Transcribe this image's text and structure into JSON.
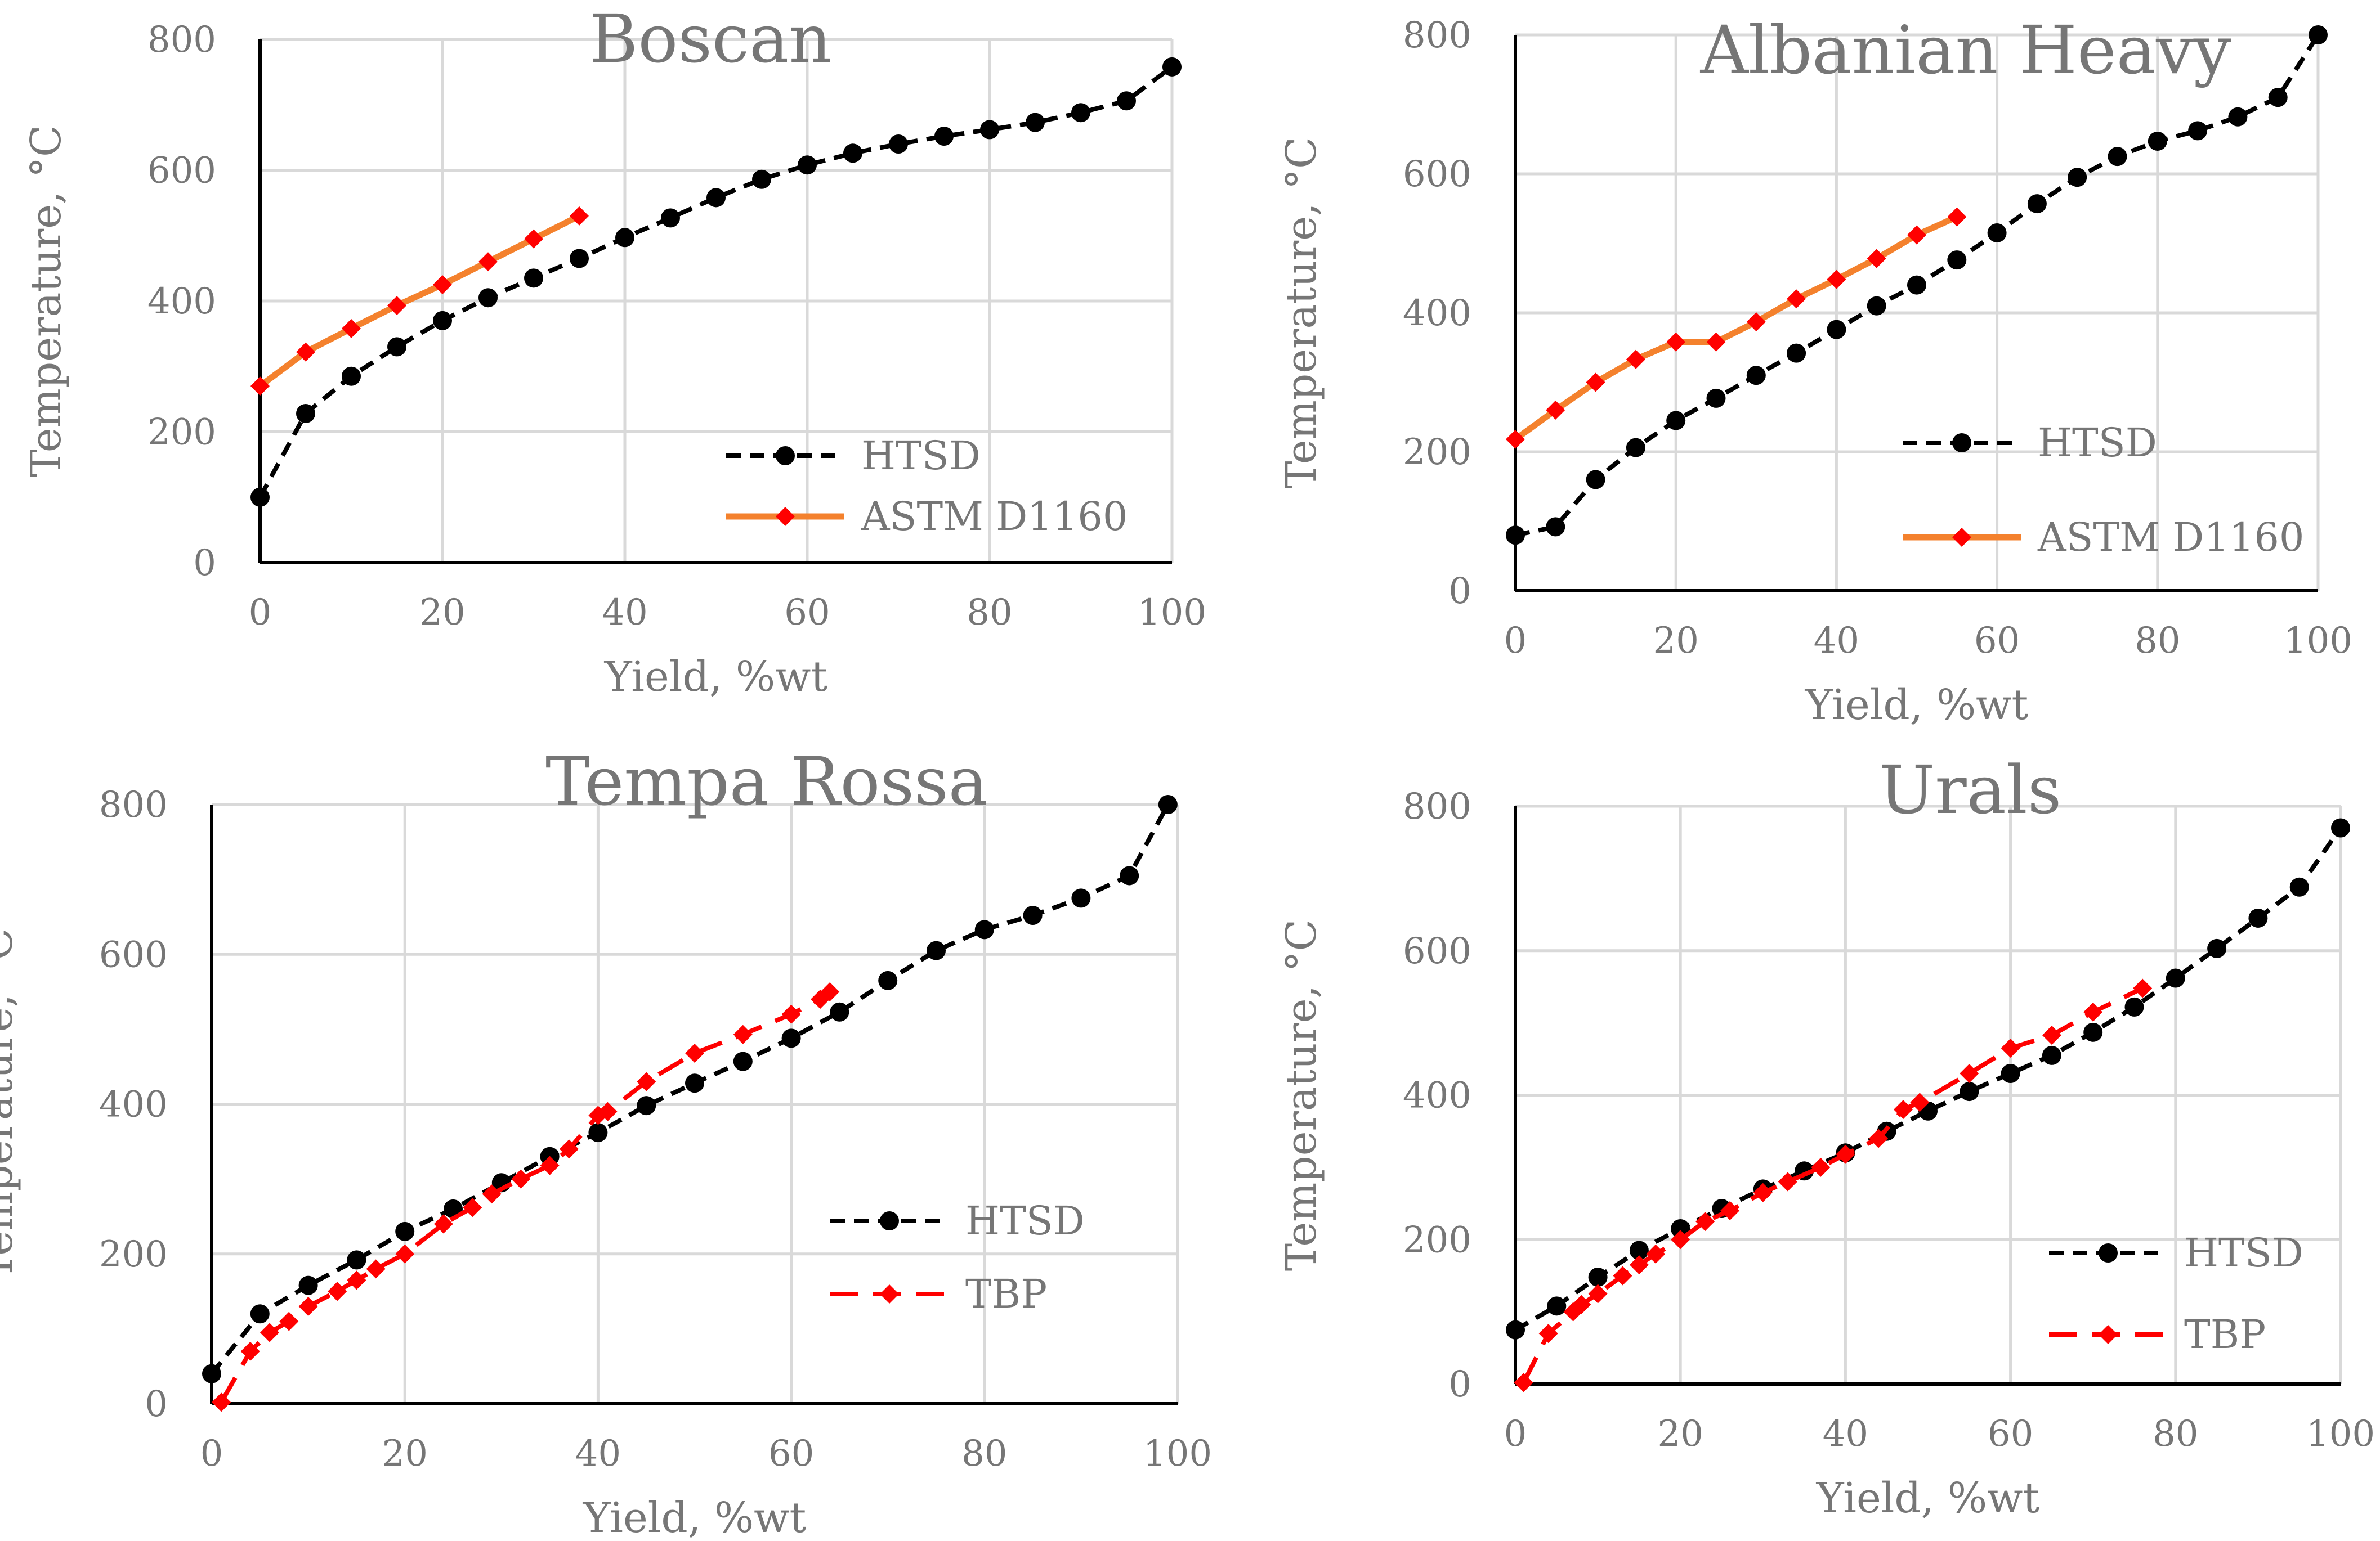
{
  "colors": {
    "htsd": "#000000",
    "astm": "#f4812d",
    "astm_marker": "#ff0000",
    "tbp": "#ff0000",
    "grid": "#d9d9d9",
    "text": "#767676"
  },
  "chart_data": [
    {
      "type": "line",
      "title": "Boscan",
      "xlabel": "Yield, %wt",
      "ylabel": "Temperature, °C",
      "xlim": [
        0,
        100
      ],
      "ylim": [
        0,
        800
      ],
      "xticks": [
        "0",
        "20",
        "40",
        "60",
        "80",
        "100"
      ],
      "yticks": [
        "0",
        "200",
        "400",
        "600",
        "800"
      ],
      "grid": true,
      "legend_position": "bottom-right",
      "series": [
        {
          "name": "HTSD",
          "style": "dashed-circle",
          "x": [
            0,
            5,
            10,
            15,
            20,
            25,
            30,
            35,
            40,
            45,
            50,
            55,
            60,
            65,
            70,
            75,
            80,
            85,
            90,
            95,
            100
          ],
          "y": [
            100,
            228,
            285,
            330,
            370,
            405,
            435,
            465,
            497,
            527,
            558,
            586,
            608,
            626,
            640,
            652,
            662,
            673,
            688,
            706,
            758
          ]
        },
        {
          "name": "ASTM D1160",
          "style": "solid-diamond",
          "x": [
            0,
            5,
            10,
            15,
            20,
            25,
            30,
            35
          ],
          "y": [
            270,
            322,
            358,
            393,
            425,
            460,
            495,
            530
          ]
        }
      ]
    },
    {
      "type": "line",
      "title": "Albanian Heavy",
      "xlabel": "Yield, %wt",
      "ylabel": "Temperature, °C",
      "xlim": [
        0,
        100
      ],
      "ylim": [
        0,
        800
      ],
      "xticks": [
        "0",
        "20",
        "40",
        "60",
        "80",
        "100"
      ],
      "yticks": [
        "0",
        "200",
        "400",
        "600",
        "800"
      ],
      "grid": true,
      "legend_position": "bottom-right",
      "series": [
        {
          "name": "HTSD",
          "style": "dashed-circle",
          "x": [
            0,
            5,
            10,
            15,
            20,
            25,
            30,
            35,
            40,
            45,
            50,
            55,
            60,
            65,
            70,
            75,
            80,
            85,
            90,
            95,
            100
          ],
          "y": [
            80,
            92,
            160,
            206,
            245,
            277,
            310,
            342,
            376,
            410,
            440,
            476,
            515,
            557,
            595,
            625,
            647,
            662,
            682,
            710,
            800
          ]
        },
        {
          "name": "ASTM D1160",
          "style": "solid-diamond",
          "x": [
            0,
            5,
            10,
            15,
            20,
            25,
            30,
            35,
            40,
            45,
            50,
            55
          ],
          "y": [
            218,
            260,
            300,
            333,
            358,
            358,
            387,
            420,
            448,
            478,
            512,
            538
          ]
        }
      ]
    },
    {
      "type": "line",
      "title": "Tempa Rossa",
      "xlabel": "Yield, %wt",
      "ylabel": "Temperature, °C",
      "xlim": [
        0,
        100
      ],
      "ylim": [
        0,
        800
      ],
      "xticks": [
        "0",
        "20",
        "40",
        "60",
        "80",
        "100"
      ],
      "yticks": [
        "0",
        "200",
        "400",
        "600",
        "800"
      ],
      "grid": true,
      "legend_position": "bottom-right",
      "series": [
        {
          "name": "HTSD",
          "style": "dashed-circle",
          "x": [
            0,
            5,
            10,
            15,
            20,
            25,
            30,
            35,
            40,
            45,
            50,
            55,
            60,
            65,
            70,
            75,
            80,
            85,
            90,
            95,
            99
          ],
          "y": [
            40,
            120,
            158,
            192,
            230,
            260,
            295,
            330,
            362,
            398,
            428,
            457,
            488,
            523,
            565,
            605,
            633,
            652,
            675,
            705,
            800
          ]
        },
        {
          "name": "TBP",
          "style": "longdash-diamond",
          "x": [
            1,
            4,
            6,
            8,
            10,
            13,
            15,
            17,
            20,
            24,
            27,
            29,
            32,
            35,
            37,
            40,
            41,
            45,
            50,
            55,
            60,
            63,
            64
          ],
          "y": [
            2,
            70,
            95,
            110,
            130,
            150,
            165,
            180,
            200,
            240,
            262,
            280,
            300,
            318,
            340,
            385,
            390,
            430,
            468,
            493,
            520,
            540,
            550
          ]
        }
      ]
    },
    {
      "type": "line",
      "title": "Urals",
      "xlabel": "Yield, %wt",
      "ylabel": "Temperature, °C",
      "xlim": [
        0,
        100
      ],
      "ylim": [
        0,
        800
      ],
      "xticks": [
        "0",
        "20",
        "40",
        "60",
        "80",
        "100"
      ],
      "yticks": [
        "0",
        "200",
        "400",
        "600",
        "800"
      ],
      "grid": true,
      "legend_position": "bottom-right",
      "series": [
        {
          "name": "HTSD",
          "style": "dashed-circle",
          "x": [
            0,
            5,
            10,
            15,
            20,
            25,
            30,
            35,
            40,
            45,
            50,
            55,
            60,
            65,
            70,
            75,
            80,
            85,
            90,
            95,
            100
          ],
          "y": [
            75,
            108,
            148,
            185,
            215,
            243,
            270,
            295,
            320,
            350,
            378,
            405,
            430,
            455,
            487,
            522,
            562,
            603,
            645,
            688,
            770
          ]
        },
        {
          "name": "TBP",
          "style": "longdash-diamond",
          "x": [
            1,
            4,
            7,
            8,
            10,
            13,
            15,
            17,
            20,
            23,
            26,
            30,
            33,
            37,
            40,
            44,
            47,
            49,
            55,
            60,
            65,
            70,
            76
          ],
          "y": [
            2,
            70,
            100,
            110,
            125,
            150,
            165,
            180,
            200,
            225,
            240,
            265,
            280,
            300,
            318,
            340,
            380,
            390,
            430,
            465,
            483,
            515,
            548
          ]
        }
      ]
    }
  ]
}
